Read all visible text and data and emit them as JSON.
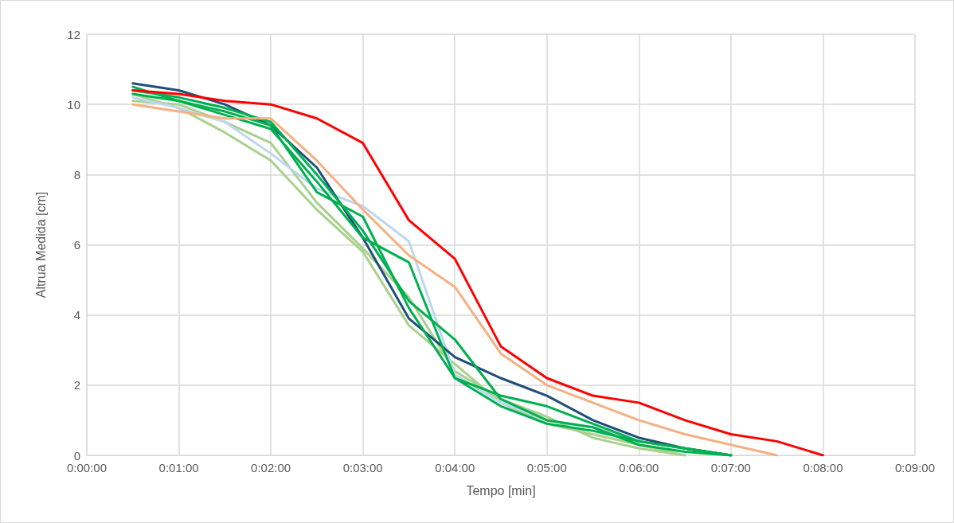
{
  "chart_data": {
    "type": "line",
    "xlabel": "Tempo [min]",
    "ylabel": "Altrua Medida [cm]",
    "xlim": [
      0,
      9
    ],
    "xticks": [
      {
        "value": 0,
        "label": "0:00:00"
      },
      {
        "value": 1,
        "label": "0:01:00"
      },
      {
        "value": 2,
        "label": "0:02:00"
      },
      {
        "value": 3,
        "label": "0:03:00"
      },
      {
        "value": 4,
        "label": "0:04:00"
      },
      {
        "value": 5,
        "label": "0:05:00"
      },
      {
        "value": 6,
        "label": "0:06:00"
      },
      {
        "value": 7,
        "label": "0:07:00"
      },
      {
        "value": 8,
        "label": "0:08:00"
      },
      {
        "value": 9,
        "label": "0:09:00"
      }
    ],
    "ylim": [
      0,
      12
    ],
    "yticks": [
      0,
      2,
      4,
      6,
      8,
      10,
      12
    ],
    "grid": true,
    "marker": "none",
    "line_style": "solid",
    "series": [
      {
        "color": "#a9d18e",
        "x": [
          0.5,
          1,
          1.5,
          2,
          2.5,
          3,
          3.5,
          4,
          4.5,
          5,
          5.5,
          6,
          6.5
        ],
        "values": [
          10.3,
          9.9,
          9.2,
          8.4,
          7.0,
          5.8,
          3.7,
          2.6,
          1.5,
          0.9,
          0.6,
          0.3,
          0
        ]
      },
      {
        "color": "#a9d18e",
        "x": [
          0.5,
          1,
          1.5,
          2,
          2.5,
          3,
          3.5,
          4,
          4.5,
          5,
          5.5,
          6,
          6.5
        ],
        "values": [
          10.1,
          10.0,
          9.5,
          8.9,
          7.2,
          5.9,
          4.5,
          2.4,
          1.6,
          1.1,
          0.5,
          0.2,
          0
        ]
      },
      {
        "color": "#bdd7ee",
        "x": [
          0.5,
          1,
          1.5,
          2,
          2.5,
          3,
          3.5,
          4,
          4.5,
          5,
          5.5,
          6,
          6.5,
          7
        ],
        "values": [
          10.2,
          9.9,
          9.5,
          8.6,
          7.6,
          7.1,
          6.1,
          2.3,
          1.5,
          1.0,
          0.8,
          0.4,
          0.2,
          0
        ]
      },
      {
        "color": "#1f4e79",
        "x": [
          0.5,
          1,
          1.5,
          2,
          2.5,
          3,
          3.5,
          4,
          4.5,
          5,
          5.5,
          6,
          6.5,
          7
        ],
        "values": [
          10.6,
          10.4,
          10.0,
          9.4,
          8.2,
          6.2,
          3.9,
          2.8,
          2.2,
          1.7,
          1.0,
          0.5,
          0.2,
          0
        ]
      },
      {
        "color": "#00b050",
        "x": [
          0.5,
          1,
          1.5,
          2,
          2.5,
          3,
          3.5,
          4,
          4.5,
          5,
          5.5,
          6,
          6.5,
          7
        ],
        "values": [
          10.5,
          10.1,
          9.8,
          9.4,
          7.5,
          6.8,
          4.2,
          2.2,
          1.4,
          0.9,
          0.7,
          0.4,
          0.2,
          0
        ]
      },
      {
        "color": "#00b050",
        "x": [
          0.5,
          1,
          1.5,
          2,
          2.5,
          3,
          3.5,
          4,
          4.5,
          5,
          5.5,
          6,
          6.5,
          7
        ],
        "values": [
          10.3,
          10.1,
          9.7,
          9.3,
          7.8,
          6.2,
          5.5,
          2.2,
          1.7,
          1.4,
          0.9,
          0.4,
          0.2,
          0
        ]
      },
      {
        "color": "#00b050",
        "x": [
          0.5,
          1,
          1.5,
          2,
          2.5,
          3,
          3.5,
          4,
          4.5,
          5,
          5.5,
          6,
          6.5,
          7
        ],
        "values": [
          10.4,
          10.2,
          9.9,
          9.5,
          8.0,
          6.4,
          4.4,
          3.3,
          1.6,
          1.0,
          0.8,
          0.3,
          0.1,
          0
        ]
      },
      {
        "color": "#f4b183",
        "x": [
          0.5,
          1,
          1.5,
          2,
          2.5,
          3,
          3.5,
          4,
          4.5,
          5,
          5.5,
          6,
          6.5,
          7,
          7.5
        ],
        "values": [
          10.0,
          9.8,
          9.6,
          9.6,
          8.4,
          7.0,
          5.7,
          4.8,
          2.9,
          2.0,
          1.5,
          1.0,
          0.6,
          0.3,
          0
        ]
      },
      {
        "color": "#ff0000",
        "x": [
          0.5,
          1,
          1.5,
          2,
          2.5,
          3,
          3.5,
          4,
          4.5,
          5,
          5.5,
          6,
          6.5,
          7,
          7.5,
          8
        ],
        "values": [
          10.4,
          10.3,
          10.1,
          10.0,
          9.6,
          8.9,
          6.7,
          5.6,
          3.1,
          2.2,
          1.7,
          1.5,
          1.0,
          0.6,
          0.4,
          0
        ]
      }
    ]
  }
}
